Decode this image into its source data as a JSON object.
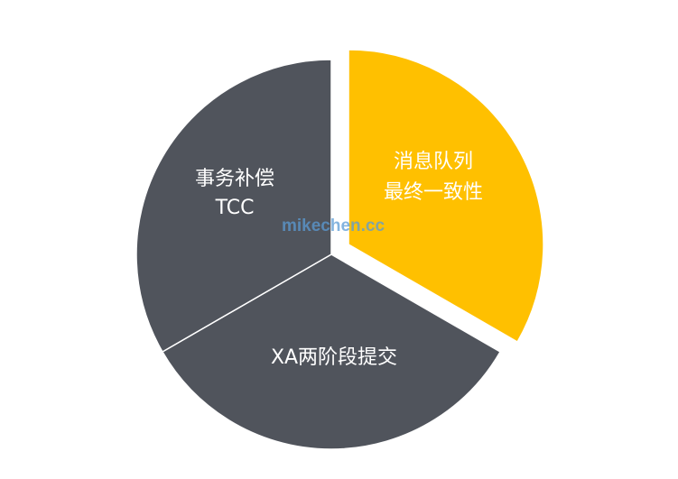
{
  "chart_data": {
    "type": "pie",
    "slices": [
      {
        "label_lines": [
          "消息队列",
          "最终一致性"
        ],
        "value": 1,
        "color": "#ffc000",
        "exploded": true
      },
      {
        "label_lines": [
          "XA两阶段提交"
        ],
        "value": 1,
        "color": "#50545c",
        "exploded": false
      },
      {
        "label_lines": [
          "事务补偿",
          "TCC"
        ],
        "value": 1,
        "color": "#50545c",
        "exploded": false
      }
    ]
  },
  "watermark": "mikechen.cc"
}
